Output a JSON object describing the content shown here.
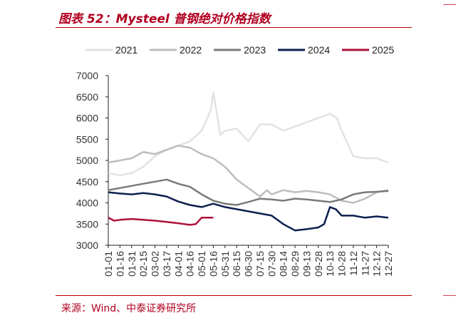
{
  "title": "图表 52：Mysteel 普钢绝对价格指数",
  "source": "来源：Wind、中泰证券研究所",
  "chart_data": {
    "type": "line",
    "ylim": [
      3000,
      7000
    ],
    "yticks": [
      3000,
      3500,
      4000,
      4500,
      5000,
      5500,
      6000,
      6500,
      7000
    ],
    "xticks": [
      "01-01",
      "01-16",
      "01-31",
      "02-15",
      "03-02",
      "03-17",
      "04-01",
      "04-16",
      "05-01",
      "05-16",
      "05-31",
      "06-15",
      "06-30",
      "07-15",
      "07-30",
      "08-14",
      "08-29",
      "09-13",
      "09-28",
      "10-13",
      "10-28",
      "11-12",
      "11-27",
      "12-12",
      "12-27"
    ],
    "legend_position": "top",
    "series": [
      {
        "name": "2021",
        "color": "#e2e2e2",
        "values": [
          [
            0,
            4700
          ],
          [
            1,
            4650
          ],
          [
            2,
            4700
          ],
          [
            3,
            4850
          ],
          [
            4,
            5100
          ],
          [
            5,
            5250
          ],
          [
            6,
            5350
          ],
          [
            7,
            5450
          ],
          [
            8,
            5700
          ],
          [
            8.8,
            6200
          ],
          [
            9,
            6600
          ],
          [
            9.3,
            6100
          ],
          [
            9.6,
            5600
          ],
          [
            10,
            5700
          ],
          [
            11,
            5750
          ],
          [
            12,
            5450
          ],
          [
            13,
            5850
          ],
          [
            14,
            5850
          ],
          [
            15,
            5700
          ],
          [
            16,
            5800
          ],
          [
            17,
            5900
          ],
          [
            18,
            6000
          ],
          [
            19,
            6100
          ],
          [
            19.6,
            6000
          ],
          [
            20,
            5700
          ],
          [
            21,
            5100
          ],
          [
            22,
            5050
          ],
          [
            23,
            5050
          ],
          [
            24,
            4950
          ]
        ]
      },
      {
        "name": "2022",
        "color": "#bdbdbd",
        "values": [
          [
            0,
            4950
          ],
          [
            1,
            5000
          ],
          [
            2,
            5050
          ],
          [
            3,
            5200
          ],
          [
            4,
            5150
          ],
          [
            5,
            5250
          ],
          [
            6,
            5350
          ],
          [
            7,
            5300
          ],
          [
            8,
            5150
          ],
          [
            9,
            5050
          ],
          [
            10,
            4850
          ],
          [
            11,
            4550
          ],
          [
            12,
            4350
          ],
          [
            13,
            4150
          ],
          [
            13.6,
            4300
          ],
          [
            14,
            4200
          ],
          [
            15,
            4300
          ],
          [
            16,
            4250
          ],
          [
            17,
            4280
          ],
          [
            18,
            4250
          ],
          [
            19,
            4200
          ],
          [
            20,
            4050
          ],
          [
            21,
            4000
          ],
          [
            22,
            4100
          ],
          [
            23,
            4250
          ],
          [
            24,
            4300
          ]
        ]
      },
      {
        "name": "2023",
        "color": "#7a7a7a",
        "values": [
          [
            0,
            4300
          ],
          [
            1,
            4350
          ],
          [
            2,
            4400
          ],
          [
            3,
            4450
          ],
          [
            4,
            4500
          ],
          [
            5,
            4550
          ],
          [
            6,
            4450
          ],
          [
            7,
            4380
          ],
          [
            8,
            4200
          ],
          [
            9,
            4050
          ],
          [
            10,
            3980
          ],
          [
            11,
            3950
          ],
          [
            12,
            4020
          ],
          [
            13,
            4100
          ],
          [
            14,
            4080
          ],
          [
            15,
            4050
          ],
          [
            16,
            4100
          ],
          [
            17,
            4080
          ],
          [
            18,
            4050
          ],
          [
            19,
            4020
          ],
          [
            20,
            4080
          ],
          [
            21,
            4200
          ],
          [
            22,
            4250
          ],
          [
            23,
            4260
          ],
          [
            24,
            4280
          ]
        ]
      },
      {
        "name": "2024",
        "color": "#0d1f4f",
        "values": [
          [
            0,
            4250
          ],
          [
            1,
            4220
          ],
          [
            2,
            4200
          ],
          [
            3,
            4230
          ],
          [
            4,
            4200
          ],
          [
            5,
            4150
          ],
          [
            6,
            4030
          ],
          [
            7,
            3950
          ],
          [
            8,
            3900
          ],
          [
            9,
            3980
          ],
          [
            10,
            3900
          ],
          [
            11,
            3850
          ],
          [
            12,
            3800
          ],
          [
            13,
            3750
          ],
          [
            14,
            3700
          ],
          [
            15,
            3500
          ],
          [
            16,
            3350
          ],
          [
            17,
            3380
          ],
          [
            18,
            3420
          ],
          [
            18.5,
            3500
          ],
          [
            19,
            3900
          ],
          [
            19.5,
            3850
          ],
          [
            20,
            3700
          ],
          [
            21,
            3700
          ],
          [
            22,
            3650
          ],
          [
            23,
            3680
          ],
          [
            24,
            3650
          ]
        ]
      },
      {
        "name": "2025",
        "color": "#b0103a",
        "values": [
          [
            0,
            3650
          ],
          [
            0.5,
            3580
          ],
          [
            1,
            3600
          ],
          [
            2,
            3620
          ],
          [
            3,
            3600
          ],
          [
            4,
            3580
          ],
          [
            5,
            3550
          ],
          [
            6,
            3520
          ],
          [
            7,
            3480
          ],
          [
            7.5,
            3500
          ],
          [
            8,
            3650
          ],
          [
            9,
            3650
          ]
        ]
      }
    ]
  }
}
